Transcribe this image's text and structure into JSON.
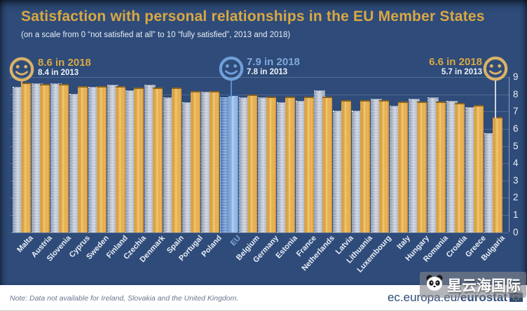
{
  "title": "Satisfaction with personal relationships in the EU Member States",
  "subtitle": "(on a scale from 0 “not satisfied at all” to 10 “fully satisfied”, 2013 and 2018)",
  "annotations": {
    "highest": {
      "line1": "8.6 in 2018",
      "line2": "8.4 in 2013",
      "target": "Malta"
    },
    "eu": {
      "line1": "7.9 in 2018",
      "line2": "7.8 in 2013",
      "target": "EU"
    },
    "lowest": {
      "line1": "6.6 in 2018",
      "line2": "5.7 in 2013",
      "target": "Bulgaria"
    }
  },
  "chart_data": {
    "type": "bar",
    "title": "Satisfaction with personal relationships in the EU Member States",
    "subtitle": "(on a scale from 0 “not satisfied at all” to 10 “fully satisfied”, 2013 and 2018)",
    "categories": [
      "Malta",
      "Austria",
      "Slovenia",
      "Cyprus",
      "Sweden",
      "Finland",
      "Czechia",
      "Denmark",
      "Spain",
      "Portugal",
      "Poland",
      "EU",
      "Belgium",
      "Germany",
      "Estonia",
      "France",
      "Netherlands",
      "Latvia",
      "Lithuania",
      "Luxembourg",
      "Italy",
      "Hungary",
      "Romania",
      "Croatia",
      "Greece",
      "Bulgaria"
    ],
    "series": [
      {
        "name": "2013",
        "values": [
          8.4,
          8.6,
          8.6,
          8.0,
          8.4,
          8.5,
          8.2,
          8.5,
          7.8,
          7.5,
          8.1,
          7.8,
          7.8,
          7.8,
          7.5,
          7.6,
          8.2,
          7.0,
          7.0,
          7.7,
          7.3,
          7.7,
          7.8,
          7.6,
          7.2,
          5.7
        ]
      },
      {
        "name": "2018",
        "values": [
          8.6,
          8.5,
          8.5,
          8.4,
          8.4,
          8.4,
          8.3,
          8.3,
          8.3,
          8.1,
          8.1,
          7.9,
          7.9,
          7.8,
          7.8,
          7.8,
          7.8,
          7.6,
          7.6,
          7.6,
          7.5,
          7.5,
          7.5,
          7.4,
          7.3,
          6.6
        ]
      }
    ],
    "highlight_category": "EU",
    "ylim": [
      0,
      9
    ],
    "yticks": [
      0,
      1,
      2,
      3,
      4,
      5,
      6,
      7,
      8,
      9
    ],
    "ytick_side": "right",
    "grid": true,
    "legend_position": "none",
    "callouts": [
      {
        "category": "Malta",
        "value_2018": 8.6,
        "value_2013": 8.4
      },
      {
        "category": "EU",
        "value_2018": 7.9,
        "value_2013": 7.8
      },
      {
        "category": "Bulgaria",
        "value_2018": 6.6,
        "value_2013": 5.7
      }
    ]
  },
  "footer": {
    "note": "Note: Data not available for Ireland, Slovakia and the United Kingdom.",
    "source_prefix": "ec.europa.eu/",
    "source_bold": "eurostat"
  },
  "watermark": {
    "text": "星云海国际"
  },
  "colors": {
    "background": "#2e4b79",
    "title_gold": "#d9a843",
    "bar_2018_gold": "#e0a23d",
    "bar_2013_gray": "#aeb8cb",
    "eu_2018_blue": "#7fa9dd",
    "eu_2013_blue": "#4c77b3",
    "axis_text": "#e9eef6"
  }
}
